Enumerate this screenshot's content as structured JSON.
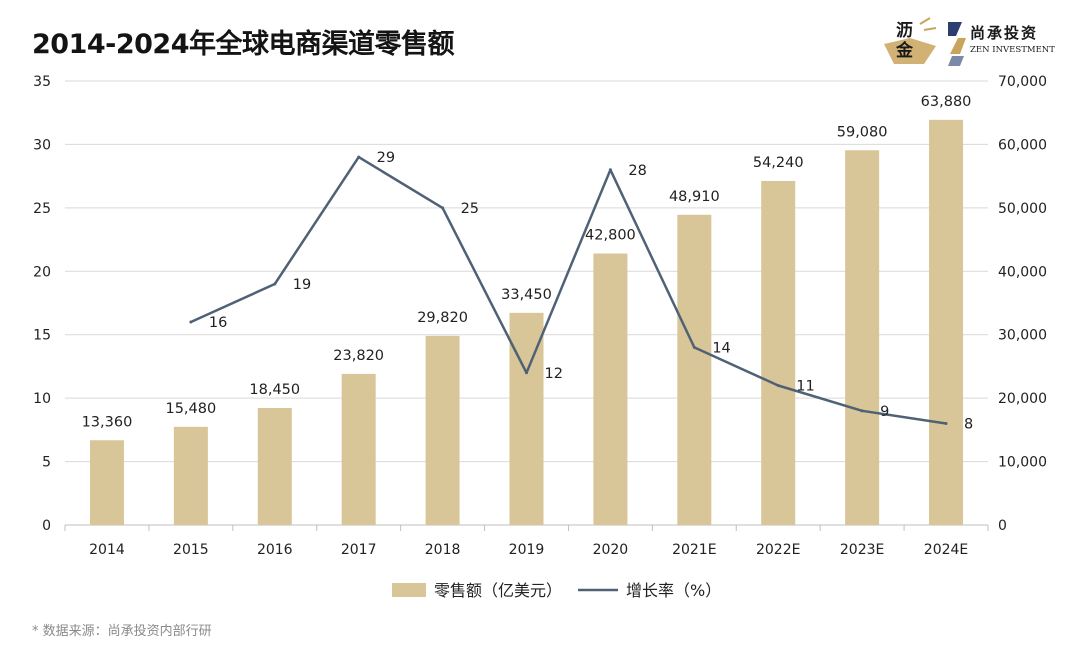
{
  "header": {
    "title": "2014-2024年全球电商渠道零售额"
  },
  "logos": {
    "lijin": {
      "line1": "沥",
      "line2": "金",
      "color": "#1a1a1a",
      "accent": "#c9a55c"
    },
    "zen": {
      "cn": "尚承投资",
      "en": "ZEN INVESTMENT",
      "colors": [
        "#2c3e70",
        "#c9a55c",
        "#7a8aa8"
      ]
    }
  },
  "chart_data": {
    "type": "bar",
    "title": "2014-2024年全球电商渠道零售额",
    "categories": [
      "2014",
      "2015",
      "2016",
      "2017",
      "2018",
      "2019",
      "2020",
      "2021E",
      "2022E",
      "2023E",
      "2024E"
    ],
    "series": [
      {
        "name": "零售额（亿美元）",
        "kind": "bar",
        "axis": "right",
        "color": "#d8c598",
        "values": [
          13360,
          15480,
          18450,
          23820,
          29820,
          33450,
          42800,
          48910,
          54240,
          59080,
          63880
        ],
        "labels": [
          "13,360",
          "15,480",
          "18,450",
          "23,820",
          "29,820",
          "33,450",
          "42,800",
          "48,910",
          "54,240",
          "59,080",
          "63,880"
        ]
      },
      {
        "name": "增长率（%）",
        "kind": "line",
        "axis": "left",
        "color": "#4f6275",
        "values": [
          null,
          16,
          19,
          29,
          25,
          12,
          28,
          14,
          11,
          9,
          8
        ],
        "labels": [
          "",
          "16",
          "19",
          "29",
          "25",
          "12",
          "28",
          "14",
          "11",
          "9",
          "8"
        ]
      }
    ],
    "y_left": {
      "range": [
        0,
        35
      ],
      "ticks": [
        "0",
        "5",
        "10",
        "15",
        "20",
        "25",
        "30",
        "35"
      ]
    },
    "y_right": {
      "range": [
        0,
        70000
      ],
      "ticks": [
        "0",
        "10,000",
        "20,000",
        "30,000",
        "40,000",
        "50,000",
        "60,000",
        "70,000"
      ]
    },
    "grid": true,
    "legend": "bottom-center",
    "gridColor": "#d9d9d9",
    "textColor": "#222222"
  },
  "footer": {
    "source": "* 数据来源：尚承投资内部行研"
  }
}
